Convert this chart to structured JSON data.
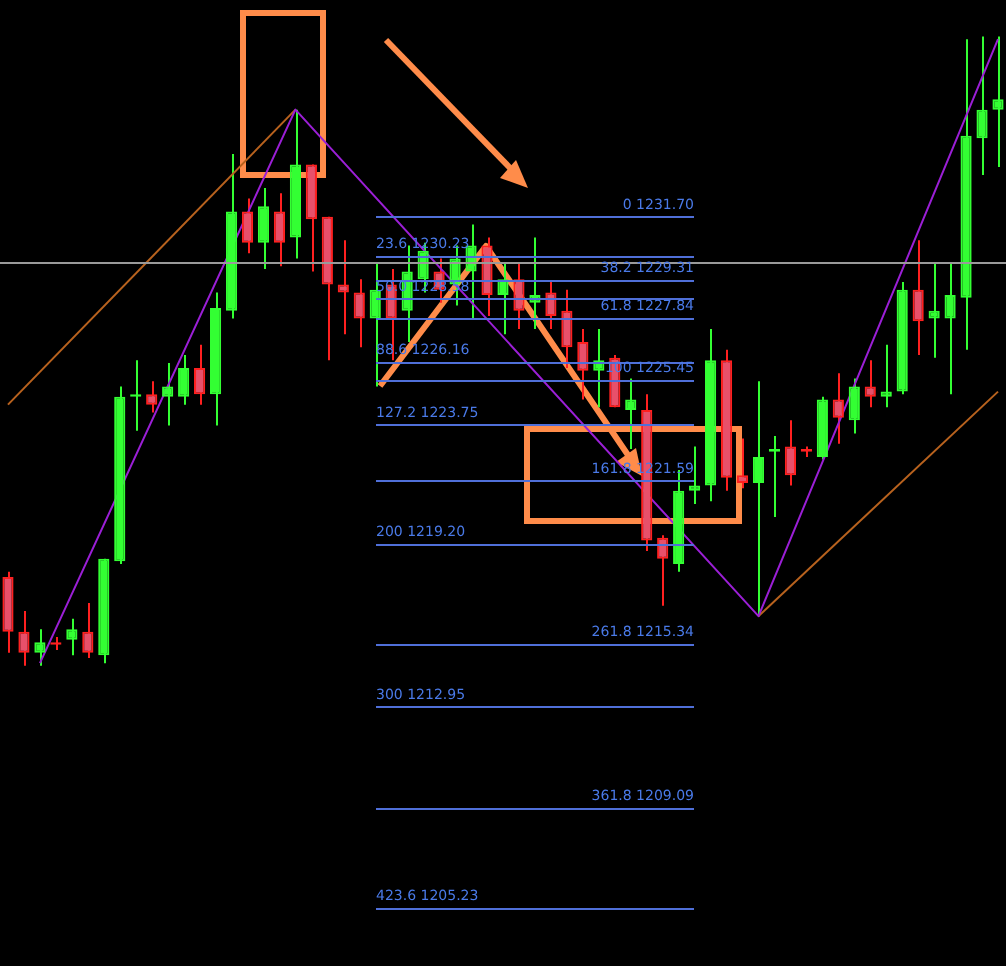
{
  "chart_data": {
    "type": "candlestick",
    "categories": [
      null,
      null,
      null,
      null,
      null,
      null,
      null,
      null,
      null,
      null,
      null,
      null,
      null,
      null,
      null,
      null,
      null,
      null,
      null,
      null,
      null,
      null,
      null,
      null,
      null,
      null,
      null,
      null,
      null,
      null,
      null,
      null,
      null,
      null,
      null,
      null,
      null,
      null,
      null,
      null,
      null,
      null,
      null,
      null,
      null,
      null,
      null,
      null,
      null,
      null,
      null,
      null,
      null,
      null,
      null,
      null,
      null,
      null,
      null,
      null,
      null,
      null,
      null
    ],
    "ohlc": [
      [
        1217.9,
        1218.1,
        1215.0,
        1215.8
      ],
      [
        1215.8,
        1216.6,
        1214.5,
        1215.0
      ],
      [
        1215.0,
        1215.9,
        1214.5,
        1215.4
      ],
      [
        1215.4,
        1215.6,
        1215.1,
        1215.3
      ],
      [
        1215.5,
        1216.3,
        1214.9,
        1215.9
      ],
      [
        1215.8,
        1216.9,
        1214.8,
        1215.0
      ],
      [
        1214.9,
        1218.6,
        1214.6,
        1218.6
      ],
      [
        1218.5,
        1225.2,
        1218.4,
        1224.8
      ],
      [
        1224.8,
        1226.2,
        1223.5,
        1224.9
      ],
      [
        1224.9,
        1225.4,
        1224.2,
        1224.5
      ],
      [
        1224.8,
        1226.1,
        1223.7,
        1225.2
      ],
      [
        1224.8,
        1226.4,
        1224.5,
        1225.9
      ],
      [
        1225.9,
        1226.8,
        1224.5,
        1224.9
      ],
      [
        1224.9,
        1228.8,
        1223.7,
        1228.2
      ],
      [
        1228.1,
        1234.1,
        1227.8,
        1231.9
      ],
      [
        1231.9,
        1232.4,
        1230.3,
        1230.7
      ],
      [
        1230.7,
        1232.8,
        1229.7,
        1232.1
      ],
      [
        1231.9,
        1232.6,
        1229.8,
        1230.7
      ],
      [
        1230.9,
        1235.8,
        1230.1,
        1233.7
      ],
      [
        1233.7,
        1233.7,
        1229.6,
        1231.6
      ],
      [
        1231.7,
        1231.7,
        1226.2,
        1229.1
      ],
      [
        1229.1,
        1230.8,
        1227.2,
        1228.8
      ],
      [
        1228.8,
        1229.3,
        1226.7,
        1227.8
      ],
      [
        1227.8,
        1229.9,
        1225.2,
        1228.9
      ],
      [
        1229.1,
        1229.7,
        1226.2,
        1227.8
      ],
      [
        1228.1,
        1230.6,
        1226.9,
        1229.6
      ],
      [
        1229.3,
        1230.7,
        1228.8,
        1230.4
      ],
      [
        1229.6,
        1230.1,
        1228.4,
        1228.9
      ],
      [
        1229.1,
        1230.6,
        1228.3,
        1230.1
      ],
      [
        1229.6,
        1231.4,
        1227.8,
        1230.6
      ],
      [
        1230.6,
        1230.9,
        1227.9,
        1228.7
      ],
      [
        1228.7,
        1229.9,
        1227.2,
        1229.3
      ],
      [
        1229.3,
        1229.9,
        1227.4,
        1228.1
      ],
      [
        1228.4,
        1230.9,
        1227.4,
        1228.7
      ],
      [
        1228.8,
        1229.2,
        1227.4,
        1227.9
      ],
      [
        1228.1,
        1228.9,
        1225.9,
        1226.7
      ],
      [
        1226.9,
        1227.4,
        1224.7,
        1225.8
      ],
      [
        1225.8,
        1227.4,
        1224.4,
        1226.2
      ],
      [
        1226.3,
        1226.4,
        1224.4,
        1224.4
      ],
      [
        1224.3,
        1225.5,
        1222.8,
        1224.7
      ],
      [
        1224.3,
        1224.9,
        1218.9,
        1219.3
      ],
      [
        1219.4,
        1219.5,
        1216.8,
        1218.6
      ],
      [
        1218.4,
        1222.0,
        1218.1,
        1221.2
      ],
      [
        1221.2,
        1222.9,
        1220.7,
        1221.4
      ],
      [
        1221.4,
        1227.4,
        1220.8,
        1226.2
      ],
      [
        1226.2,
        1226.6,
        1221.2,
        1221.7
      ],
      [
        1221.8,
        1223.2,
        1221.3,
        1221.5
      ],
      [
        1221.5,
        1225.4,
        1216.4,
        1222.5
      ],
      [
        1222.7,
        1223.3,
        1220.2,
        1222.8
      ],
      [
        1222.9,
        1223.9,
        1221.4,
        1221.8
      ],
      [
        1222.8,
        1222.9,
        1222.5,
        1222.7
      ],
      [
        1222.5,
        1224.8,
        1222.4,
        1224.7
      ],
      [
        1224.7,
        1225.7,
        1223.0,
        1224.0
      ],
      [
        1223.9,
        1225.5,
        1223.4,
        1225.2
      ],
      [
        1225.2,
        1226.2,
        1224.4,
        1224.8
      ],
      [
        1224.8,
        1226.8,
        1224.4,
        1225.0
      ],
      [
        1225.0,
        1229.2,
        1224.9,
        1228.9
      ],
      [
        1228.9,
        1230.8,
        1226.4,
        1227.7
      ],
      [
        1227.8,
        1229.9,
        1226.3,
        1228.1
      ],
      [
        1227.8,
        1229.9,
        1224.9,
        1228.7
      ],
      [
        1228.6,
        1238.5,
        1226.6,
        1234.8
      ],
      [
        1234.7,
        1238.6,
        1233.3,
        1235.8
      ],
      [
        1235.8,
        1238.6,
        1233.6,
        1236.2
      ]
    ],
    "series": [
      {
        "type": "line",
        "color": "#9b1fd6",
        "values": [
          null,
          null,
          1214.6,
          null,
          null,
          null,
          null,
          null,
          null,
          null,
          null,
          null,
          null,
          null,
          null,
          null,
          null,
          null,
          1235.8,
          null,
          null,
          null,
          null,
          null,
          null,
          null,
          null,
          null,
          null,
          null,
          null,
          null,
          null,
          null,
          null,
          null,
          null,
          null,
          null,
          null,
          null,
          null,
          null,
          null,
          null,
          null,
          null,
          1216.4,
          null,
          null,
          null,
          null,
          null,
          null,
          null,
          null,
          null,
          null,
          null,
          null,
          null,
          null,
          1238.5
        ]
      },
      {
        "type": "line",
        "color": "#b8621e",
        "values": [
          1224.5,
          null,
          null,
          null,
          null,
          null,
          null,
          null,
          null,
          null,
          null,
          null,
          null,
          null,
          null,
          null,
          null,
          null,
          1235.8,
          null,
          null,
          null,
          null,
          null,
          null,
          null,
          null,
          null,
          null,
          null,
          null,
          null,
          null,
          null,
          null,
          null,
          null,
          null,
          null,
          null,
          null,
          null,
          null,
          null,
          null,
          null,
          null,
          null,
          null,
          null,
          null,
          null,
          null,
          null,
          null,
          null,
          null,
          null,
          null,
          null,
          null,
          null,
          null
        ]
      },
      {
        "type": "line",
        "color": "#b8621e",
        "values": [
          null,
          null,
          null,
          null,
          null,
          null,
          null,
          null,
          null,
          null,
          null,
          null,
          null,
          null,
          null,
          null,
          null,
          null,
          null,
          null,
          null,
          null,
          null,
          null,
          null,
          null,
          null,
          null,
          null,
          null,
          null,
          null,
          null,
          null,
          null,
          null,
          null,
          null,
          null,
          null,
          null,
          null,
          null,
          null,
          null,
          null,
          null,
          1216.4,
          null,
          null,
          null,
          null,
          null,
          null,
          null,
          null,
          null,
          null,
          null,
          null,
          null,
          null,
          1225.0
        ]
      }
    ],
    "ylim": [
      1203,
      1240
    ],
    "tick_labels": false,
    "ref_lines": [
      {
        "axis": "y",
        "value": 1230.0,
        "color": "#9a9a9a"
      },
      {
        "axis": "y",
        "value": 1231.7,
        "label": "0 1231.70",
        "color": "#4f6fd8"
      },
      {
        "axis": "y",
        "value": 1230.23,
        "label": "23.6 1230.23",
        "color": "#4f6fd8"
      },
      {
        "axis": "y",
        "value": 1229.31,
        "label": "38.2 1229.31",
        "color": "#4f6fd8"
      },
      {
        "axis": "y",
        "value": 1228.58,
        "label": "50.0 1228.58",
        "color": "#4f6fd8"
      },
      {
        "axis": "y",
        "value": 1227.84,
        "label": "61.8 1227.84",
        "color": "#4f6fd8"
      },
      {
        "axis": "y",
        "value": 1226.16,
        "label": "88.6 1226.16",
        "color": "#4f6fd8"
      },
      {
        "axis": "y",
        "value": 1225.45,
        "label": "100 1225.45",
        "color": "#4f6fd8"
      },
      {
        "axis": "y",
        "value": 1223.75,
        "label": "127.2 1223.75",
        "color": "#4f6fd8"
      },
      {
        "axis": "y",
        "value": 1221.59,
        "label": "161.8 1221.59",
        "color": "#4f6fd8"
      },
      {
        "axis": "y",
        "value": 1219.2,
        "label": "200 1219.20",
        "color": "#4f6fd8"
      },
      {
        "axis": "y",
        "value": 1215.34,
        "label": "261.8 1215.34",
        "color": "#4f6fd8"
      },
      {
        "axis": "y",
        "value": 1212.95,
        "label": "300 1212.95",
        "color": "#4f6fd8"
      },
      {
        "axis": "y",
        "value": 1209.09,
        "label": "361.8 1209.09",
        "color": "#4f6fd8"
      },
      {
        "axis": "y",
        "value": 1205.23,
        "label": "423.6 1205.23",
        "color": "#4f6fd8"
      }
    ]
  }
}
